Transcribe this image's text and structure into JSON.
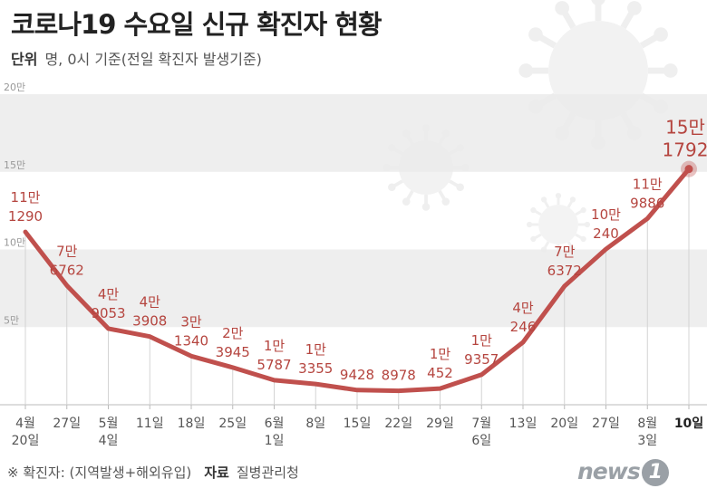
{
  "header": {
    "title": "코로나19 수요일 신규 확진자 현황",
    "unit_label": "단위",
    "unit_text": "명, 0시 기준(전일 확진자 발생기준)"
  },
  "footer": {
    "note": "※ 확진자: (지역발생+해외유입)",
    "source_label": "자료",
    "source": "질병관리청",
    "brand": "news",
    "brand_mark": "1"
  },
  "colors": {
    "line": "#c0504d",
    "label": "#b5453f",
    "band": "#ebebeb",
    "axis": "#999999"
  },
  "chart_data": {
    "type": "line",
    "title": "코로나19 수요일 신규 확진자 현황",
    "ylim": [
      0,
      200000
    ],
    "y_ticks": [
      {
        "value": 50000,
        "label": "5만"
      },
      {
        "value": 100000,
        "label": "10만"
      },
      {
        "value": 150000,
        "label": "15만"
      },
      {
        "value": 200000,
        "label": "20만"
      }
    ],
    "grid": "alternating horizontal bands",
    "categories": [
      "4월 20일",
      "27일",
      "5월 4일",
      "11일",
      "18일",
      "25일",
      "6월 1일",
      "8일",
      "15일",
      "22일",
      "29일",
      "7월 6일",
      "13일",
      "20일",
      "27일",
      "8월 3일",
      "10일"
    ],
    "x_tick_lines": [
      [
        "4월",
        "20일"
      ],
      [
        "27일"
      ],
      [
        "5월",
        "4일"
      ],
      [
        "11일"
      ],
      [
        "18일"
      ],
      [
        "25일"
      ],
      [
        "6월",
        "1일"
      ],
      [
        "8일"
      ],
      [
        "15일"
      ],
      [
        "22일"
      ],
      [
        "29일"
      ],
      [
        "7월",
        "6일"
      ],
      [
        "13일"
      ],
      [
        "20일"
      ],
      [
        "27일"
      ],
      [
        "8월",
        "3일"
      ],
      [
        "10일"
      ]
    ],
    "values": [
      111290,
      76762,
      49053,
      43908,
      31340,
      23945,
      15787,
      13355,
      9428,
      8978,
      10452,
      19357,
      40246,
      76372,
      100240,
      119886,
      151792
    ],
    "data_labels": [
      [
        "11만",
        "1290"
      ],
      [
        "7만",
        "6762"
      ],
      [
        "4만",
        "9053"
      ],
      [
        "4만",
        "3908"
      ],
      [
        "3만",
        "1340"
      ],
      [
        "2만",
        "3945"
      ],
      [
        "1만",
        "5787"
      ],
      [
        "1만",
        "3355"
      ],
      [
        "9428"
      ],
      [
        "8978"
      ],
      [
        "1만",
        "452"
      ],
      [
        "1만",
        "9357"
      ],
      [
        "4만",
        "246"
      ],
      [
        "7만",
        "6372"
      ],
      [
        "10만",
        "240"
      ],
      [
        "11만",
        "9886"
      ],
      [
        "15만",
        "1792"
      ]
    ],
    "highlight_last": true
  }
}
